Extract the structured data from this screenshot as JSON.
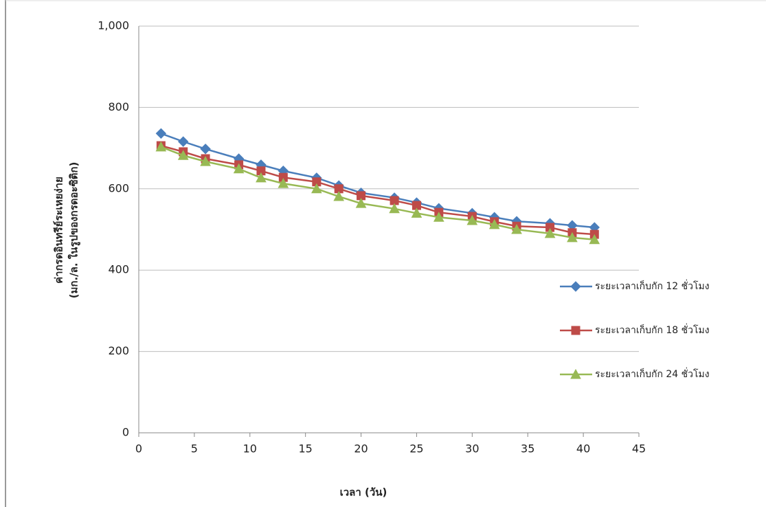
{
  "chart_data": {
    "type": "line",
    "x_label": "เวลา (วัน)",
    "y_label": [
      "ค่ากรดอินทรีย์ระเหยง่าย",
      "(มก./ล. ในรูปของกรดอะซิติก)"
    ],
    "xlim": [
      0,
      45
    ],
    "xticks": [
      0,
      5,
      10,
      15,
      20,
      25,
      30,
      35,
      40,
      45
    ],
    "ylim": [
      0,
      1000
    ],
    "yticks": [
      0,
      200,
      400,
      600,
      800,
      {
        "value": 1000,
        "label": "1,000"
      }
    ],
    "grid": true,
    "legend": "right",
    "x": [
      2,
      4,
      6,
      9,
      11,
      13,
      16,
      18,
      20,
      23,
      25,
      27,
      30,
      32,
      34,
      37,
      39,
      41
    ],
    "series": [
      {
        "name": "ระยะเวลาเก็บกัก 12 ชั่วโมง",
        "color": "#4a7ebb",
        "marker": "diamond",
        "values": [
          736,
          716,
          698,
          674,
          659,
          644,
          627,
          608,
          590,
          578,
          566,
          552,
          540,
          530,
          520,
          515,
          510,
          505
        ]
      },
      {
        "name": "ระยะเวลาเก็บกัก 18 ชั่วโมง",
        "color": "#be4b48",
        "marker": "square",
        "values": [
          706,
          691,
          674,
          659,
          644,
          628,
          617,
          600,
          583,
          571,
          559,
          542,
          532,
          519,
          508,
          505,
          492,
          488
        ]
      },
      {
        "name": "ระยะเวลาเก็บกัก 24 ชั่วโมง",
        "color": "#98b954",
        "marker": "triangle",
        "values": [
          703,
          682,
          667,
          649,
          627,
          613,
          600,
          581,
          564,
          551,
          540,
          530,
          522,
          512,
          500,
          490,
          480,
          475
        ]
      }
    ]
  }
}
